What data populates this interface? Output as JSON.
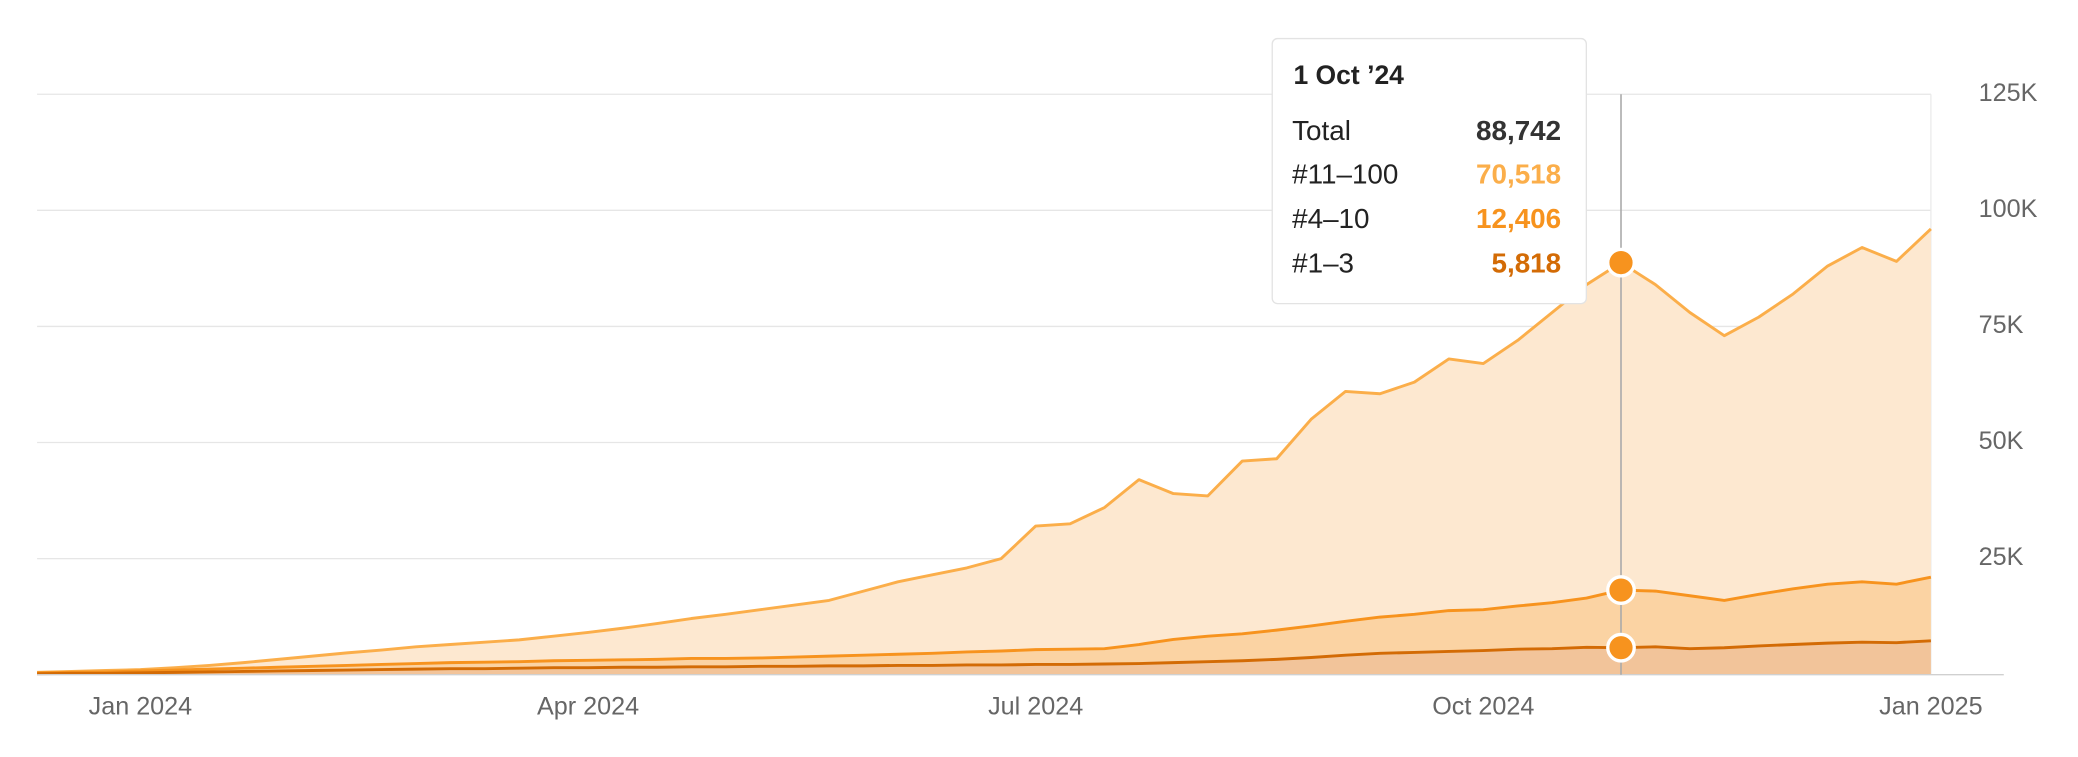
{
  "chart_data": {
    "type": "stacked_area",
    "categories": [
      null,
      null,
      null,
      "Jan 2024",
      null,
      null,
      null,
      null,
      null,
      null,
      null,
      null,
      null,
      null,
      null,
      null,
      "Apr 2024",
      null,
      null,
      null,
      null,
      null,
      null,
      null,
      null,
      null,
      null,
      null,
      null,
      "Jul 2024",
      null,
      null,
      null,
      null,
      null,
      null,
      null,
      null,
      null,
      null,
      null,
      null,
      "Oct 2024",
      null,
      null,
      null,
      null,
      null,
      null,
      null,
      null,
      null,
      null,
      null,
      null,
      "Jan 2025"
    ],
    "series": [
      {
        "name": "#11–100",
        "color": "#fbae4a",
        "fill": "#fde8d0",
        "values": [
          100,
          200,
          300,
          300,
          500,
          800,
          1200,
          1700,
          2200,
          2700,
          3100,
          3600,
          3900,
          4300,
          4700,
          5300,
          6000,
          6800,
          7700,
          8600,
          9500,
          10400,
          11200,
          12000,
          13800,
          15600,
          16900,
          18100,
          19900,
          26600,
          27000,
          30400,
          35500,
          31400,
          30200,
          37200,
          36900,
          44500,
          49500,
          48100,
          50000,
          54200,
          53000,
          57200,
          62500,
          67500,
          70518,
          66000,
          61000,
          57000,
          59700,
          63500,
          68500,
          72000,
          69500,
          75000
        ]
      },
      {
        "name": "#4–10",
        "color": "#f7931e",
        "fill": "#fbd3a3",
        "values": [
          200,
          200,
          300,
          400,
          500,
          600,
          700,
          800,
          900,
          1000,
          1100,
          1200,
          1300,
          1400,
          1400,
          1500,
          1600,
          1600,
          1700,
          1800,
          1800,
          1800,
          2000,
          2100,
          2300,
          2400,
          2600,
          2800,
          3000,
          3200,
          3300,
          3300,
          4100,
          5000,
          5500,
          5800,
          6300,
          6800,
          7300,
          7800,
          8200,
          8800,
          8800,
          9300,
          9900,
          10600,
          12406,
          12000,
          11400,
          10200,
          11100,
          12000,
          12700,
          13000,
          12600,
          13700
        ]
      },
      {
        "name": "#1–3",
        "color": "#d36b05",
        "fill": "#f2c49a",
        "values": [
          200,
          300,
          300,
          400,
          500,
          600,
          700,
          800,
          900,
          1000,
          1100,
          1200,
          1300,
          1300,
          1400,
          1500,
          1500,
          1600,
          1600,
          1700,
          1700,
          1800,
          1800,
          1900,
          1900,
          2000,
          2000,
          2100,
          2100,
          2200,
          2200,
          2300,
          2400,
          2600,
          2800,
          3000,
          3300,
          3700,
          4200,
          4600,
          4800,
          5000,
          5200,
          5500,
          5600,
          5900,
          5818,
          6000,
          5600,
          5800,
          6200,
          6500,
          6800,
          7000,
          6900,
          7300
        ]
      }
    ],
    "ylim": [
      0,
      125000
    ],
    "yticks": [
      {
        "value": 25000,
        "label": "25K"
      },
      {
        "value": 50000,
        "label": "50K"
      },
      {
        "value": 75000,
        "label": "75K"
      },
      {
        "value": 100000,
        "label": "100K"
      },
      {
        "value": 125000,
        "label": "125K"
      }
    ],
    "grid": true,
    "tooltip": {
      "title": "1 Oct ’24",
      "total_label": "Total",
      "total": "88,742",
      "values": [
        "70,518",
        "12,406",
        "5,818"
      ]
    }
  }
}
